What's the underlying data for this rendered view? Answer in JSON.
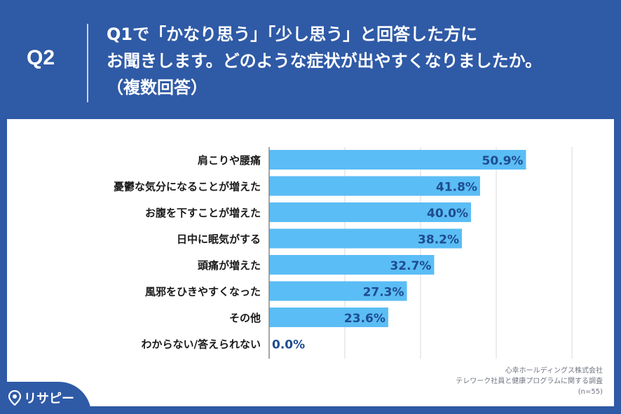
{
  "question": {
    "number": "Q2",
    "lines": [
      "Q1で「かなり思う」「少し思う」と回答した方に",
      "お聞きします。どのような症状が出やすくなりましたか。",
      "（複数回答）"
    ]
  },
  "colors": {
    "header_bg": "#2f5aa6",
    "bar": "#5bbdf5",
    "value_text": "#1e4c8f"
  },
  "chart_data": {
    "type": "bar",
    "orientation": "horizontal",
    "categories": [
      "肩こりや腰痛",
      "憂鬱な気分になることが増えた",
      "お腹を下すことが増えた",
      "日中に眠気がする",
      "頭痛が増えた",
      "風邪をひきやすくなった",
      "その他",
      "わからない/答えられない"
    ],
    "values": [
      50.9,
      41.8,
      40.0,
      38.2,
      32.7,
      27.3,
      23.6,
      0.0
    ],
    "labels": [
      "50.9%",
      "41.8%",
      "40.0%",
      "38.2%",
      "32.7%",
      "27.3%",
      "23.6%",
      "0.0%"
    ],
    "xlim": [
      0,
      60
    ],
    "grid": true
  },
  "source": {
    "company": "心幸ホールディングス株式会社",
    "survey": "テレワーク社員と健康プログラムに関する調査",
    "n": "(n=55)"
  },
  "brand": {
    "name": "リサピー",
    "icon": "pin-icon"
  }
}
